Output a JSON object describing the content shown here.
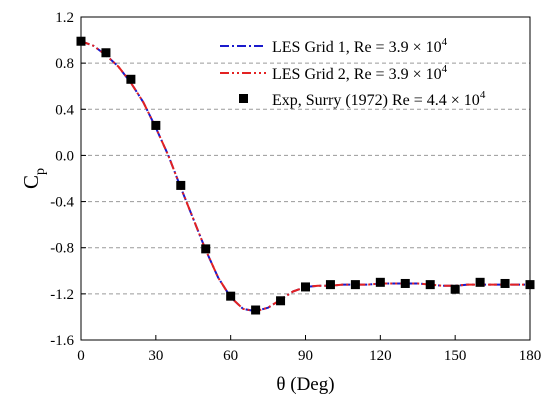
{
  "chart_data": {
    "type": "line",
    "xlabel": "θ (Deg)",
    "ylabel": {
      "main": "C",
      "sub": "p"
    },
    "xlim": [
      0,
      180
    ],
    "ylim": [
      -1.6,
      1.2
    ],
    "x_ticks": [
      0,
      30,
      60,
      90,
      120,
      150,
      180
    ],
    "x_tick_labels": [
      "0",
      "30",
      "60",
      "90",
      "120",
      "150",
      "180"
    ],
    "y_ticks": [
      -1.6,
      -1.2,
      -0.8,
      -0.4,
      0.0,
      0.4,
      0.8,
      1.2
    ],
    "y_tick_labels": [
      "-1.6",
      "-1.2",
      "-0.8",
      "-0.4",
      "0.0",
      "0.4",
      "0.8",
      "1.2"
    ],
    "grid": {
      "horizontal": true,
      "style": "dashed"
    },
    "legend_position": "top-right",
    "series": [
      {
        "name": "LES Grid 1, Re = 3.9 × 10",
        "name_exponent": "4",
        "kind": "line",
        "style": "dash-dot",
        "color": "#1a1acc",
        "x": [
          0,
          5,
          10,
          15,
          20,
          25,
          30,
          35,
          40,
          45,
          50,
          55,
          60,
          65,
          70,
          75,
          80,
          85,
          90,
          95,
          100,
          105,
          110,
          115,
          120,
          125,
          130,
          135,
          140,
          145,
          150,
          155,
          160,
          165,
          170,
          175,
          180
        ],
        "y": [
          0.99,
          0.95,
          0.87,
          0.77,
          0.63,
          0.46,
          0.24,
          0.0,
          -0.28,
          -0.55,
          -0.82,
          -1.06,
          -1.23,
          -1.33,
          -1.35,
          -1.32,
          -1.25,
          -1.18,
          -1.14,
          -1.13,
          -1.13,
          -1.12,
          -1.12,
          -1.12,
          -1.11,
          -1.11,
          -1.11,
          -1.11,
          -1.12,
          -1.13,
          -1.13,
          -1.12,
          -1.12,
          -1.12,
          -1.12,
          -1.12,
          -1.12
        ]
      },
      {
        "name": "LES Grid 2, Re = 3.9 × 10",
        "name_exponent": "4",
        "kind": "line",
        "style": "dash-dot-dot",
        "color": "#e32222",
        "x": [
          0,
          5,
          10,
          15,
          20,
          25,
          30,
          35,
          40,
          45,
          50,
          55,
          60,
          65,
          70,
          75,
          80,
          85,
          90,
          95,
          100,
          105,
          110,
          115,
          120,
          125,
          130,
          135,
          140,
          145,
          150,
          155,
          160,
          165,
          170,
          175,
          180
        ],
        "y": [
          0.99,
          0.95,
          0.87,
          0.77,
          0.63,
          0.46,
          0.24,
          0.0,
          -0.28,
          -0.55,
          -0.82,
          -1.06,
          -1.23,
          -1.33,
          -1.35,
          -1.32,
          -1.25,
          -1.18,
          -1.14,
          -1.13,
          -1.13,
          -1.12,
          -1.12,
          -1.12,
          -1.11,
          -1.11,
          -1.11,
          -1.11,
          -1.12,
          -1.13,
          -1.13,
          -1.12,
          -1.12,
          -1.12,
          -1.12,
          -1.12,
          -1.12
        ]
      },
      {
        "name": "Exp, Surry (1972) Re = 4.4 × 10",
        "name_exponent": "4",
        "kind": "scatter",
        "marker": "square",
        "color": "#000000",
        "x": [
          0,
          10,
          20,
          30,
          40,
          50,
          60,
          70,
          80,
          90,
          100,
          110,
          120,
          130,
          140,
          150,
          160,
          170,
          180
        ],
        "y": [
          0.99,
          0.89,
          0.66,
          0.26,
          -0.26,
          -0.81,
          -1.22,
          -1.34,
          -1.26,
          -1.14,
          -1.12,
          -1.12,
          -1.1,
          -1.11,
          -1.12,
          -1.16,
          -1.1,
          -1.11,
          -1.12
        ]
      }
    ]
  }
}
